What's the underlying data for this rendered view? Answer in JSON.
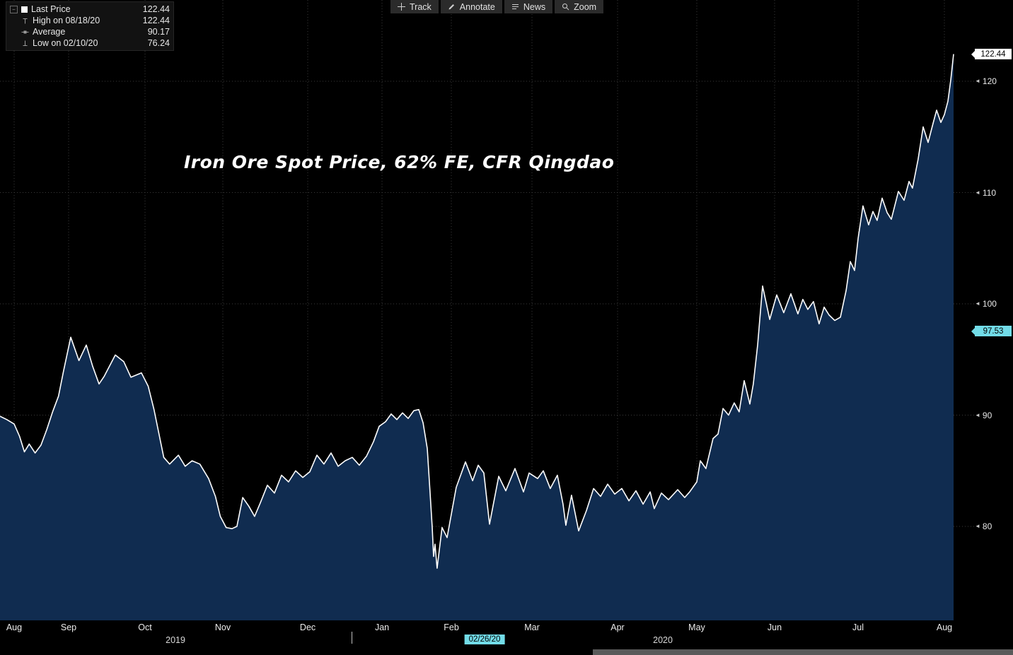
{
  "toolbar": {
    "buttons": [
      {
        "name": "track",
        "label": "Track"
      },
      {
        "name": "annotate",
        "label": "Annotate"
      },
      {
        "name": "news",
        "label": "News"
      },
      {
        "name": "zoom",
        "label": "Zoom"
      }
    ]
  },
  "legend": {
    "rows": [
      {
        "icon": "series-swatch",
        "label": "Last Price",
        "value": "122.44"
      },
      {
        "icon": "high-marker",
        "label": "High on 08/18/20",
        "value": "122.44"
      },
      {
        "icon": "average-marker",
        "label": "Average",
        "value": "90.17"
      },
      {
        "icon": "low-marker",
        "label": "Low on 02/10/20",
        "value": "76.24"
      }
    ]
  },
  "chart_data": {
    "type": "area",
    "title": "Iron Ore Spot Price, 62% FE, CFR Qingdao",
    "x_range": [
      "Aug 2019",
      "Aug 2020"
    ],
    "ylim_visible": [
      71.6,
      127.3
    ],
    "grid": "dotted",
    "stats": {
      "last_price": 122.44,
      "high": {
        "date": "08/18/20",
        "value": 122.44
      },
      "average": 90.17,
      "low": {
        "date": "02/10/20",
        "value": 76.24
      }
    },
    "y_axis": {
      "ticks": [
        80,
        90,
        100,
        110,
        120
      ],
      "badges": [
        {
          "label": "122.44",
          "price": 122.44,
          "bg": "#ffffff"
        },
        {
          "label": "97.53",
          "price": 97.53,
          "bg": "#72dce8"
        }
      ]
    },
    "x_axis": {
      "months": [
        {
          "label": "Aug",
          "f": 0.0145
        },
        {
          "label": "Sep",
          "f": 0.0704
        },
        {
          "label": "Oct",
          "f": 0.1488
        },
        {
          "label": "Nov",
          "f": 0.2286
        },
        {
          "label": "Dec",
          "f": 0.3157
        },
        {
          "label": "Jan",
          "f": 0.3919
        },
        {
          "label": "Feb",
          "f": 0.463
        },
        {
          "label": "Mar",
          "f": 0.5457
        },
        {
          "label": "Apr",
          "f": 0.6335
        },
        {
          "label": "May",
          "f": 0.7148
        },
        {
          "label": "Jun",
          "f": 0.7946
        },
        {
          "label": "Jul",
          "f": 0.8803
        },
        {
          "label": "Aug",
          "f": 0.9688
        }
      ],
      "years": [
        {
          "label": "2019",
          "f": 0.18
        },
        {
          "label": "2020",
          "f": 0.68
        }
      ],
      "year_divider_f": 0.3607,
      "cursor_badge": {
        "label": "02/26/20",
        "f": 0.4971
      }
    },
    "series": [
      {
        "name": "Last Price",
        "color": "#ffffff",
        "fill": "#102c50",
        "points": [
          [
            0.0,
            89.9
          ],
          [
            0.007,
            89.6
          ],
          [
            0.0145,
            89.2
          ],
          [
            0.02,
            88.1
          ],
          [
            0.025,
            86.7
          ],
          [
            0.03,
            87.4
          ],
          [
            0.036,
            86.6
          ],
          [
            0.042,
            87.3
          ],
          [
            0.048,
            88.7
          ],
          [
            0.054,
            90.3
          ],
          [
            0.06,
            91.7
          ],
          [
            0.065,
            93.9
          ],
          [
            0.0726,
            97.0
          ],
          [
            0.081,
            94.9
          ],
          [
            0.0885,
            96.3
          ],
          [
            0.095,
            94.4
          ],
          [
            0.1016,
            92.8
          ],
          [
            0.107,
            93.5
          ],
          [
            0.1183,
            95.4
          ],
          [
            0.127,
            94.8
          ],
          [
            0.1343,
            93.4
          ],
          [
            0.1451,
            93.8
          ],
          [
            0.152,
            92.6
          ],
          [
            0.158,
            90.5
          ],
          [
            0.168,
            86.2
          ],
          [
            0.174,
            85.6
          ],
          [
            0.183,
            86.4
          ],
          [
            0.19,
            85.4
          ],
          [
            0.197,
            85.9
          ],
          [
            0.205,
            85.6
          ],
          [
            0.214,
            84.3
          ],
          [
            0.221,
            82.7
          ],
          [
            0.226,
            80.9
          ],
          [
            0.232,
            79.9
          ],
          [
            0.238,
            79.8
          ],
          [
            0.243,
            80.0
          ],
          [
            0.249,
            82.6
          ],
          [
            0.2554,
            81.8
          ],
          [
            0.2612,
            80.9
          ],
          [
            0.267,
            82.1
          ],
          [
            0.2743,
            83.7
          ],
          [
            0.2816,
            83.0
          ],
          [
            0.2888,
            84.6
          ],
          [
            0.296,
            84.0
          ],
          [
            0.3033,
            85.0
          ],
          [
            0.3106,
            84.4
          ],
          [
            0.3178,
            84.9
          ],
          [
            0.3251,
            86.4
          ],
          [
            0.3323,
            85.6
          ],
          [
            0.3396,
            86.6
          ],
          [
            0.3469,
            85.4
          ],
          [
            0.3541,
            85.9
          ],
          [
            0.3614,
            86.2
          ],
          [
            0.3686,
            85.5
          ],
          [
            0.3759,
            86.3
          ],
          [
            0.3831,
            87.6
          ],
          [
            0.389,
            89.0
          ],
          [
            0.3955,
            89.4
          ],
          [
            0.4013,
            90.1
          ],
          [
            0.4071,
            89.6
          ],
          [
            0.4129,
            90.2
          ],
          [
            0.4187,
            89.7
          ],
          [
            0.4245,
            90.4
          ],
          [
            0.4296,
            90.5
          ],
          [
            0.434,
            89.3
          ],
          [
            0.4383,
            87.0
          ],
          [
            0.4412,
            83.0
          ],
          [
            0.4434,
            79.9
          ],
          [
            0.4448,
            77.3
          ],
          [
            0.4462,
            78.4
          ],
          [
            0.4484,
            76.24
          ],
          [
            0.4535,
            79.9
          ],
          [
            0.4586,
            79.0
          ],
          [
            0.468,
            83.5
          ],
          [
            0.4775,
            85.8
          ],
          [
            0.4848,
            84.1
          ],
          [
            0.4906,
            85.5
          ],
          [
            0.4964,
            84.8
          ],
          [
            0.5022,
            80.2
          ],
          [
            0.5116,
            84.5
          ],
          [
            0.5189,
            83.2
          ],
          [
            0.5283,
            85.2
          ],
          [
            0.537,
            83.1
          ],
          [
            0.5428,
            84.8
          ],
          [
            0.5515,
            84.3
          ],
          [
            0.5573,
            85.0
          ],
          [
            0.5645,
            83.4
          ],
          [
            0.5718,
            84.6
          ],
          [
            0.5776,
            82.0
          ],
          [
            0.5805,
            80.1
          ],
          [
            0.5863,
            82.8
          ],
          [
            0.5936,
            79.6
          ],
          [
            0.6015,
            81.4
          ],
          [
            0.6089,
            83.4
          ],
          [
            0.6161,
            82.7
          ],
          [
            0.6234,
            83.8
          ],
          [
            0.6306,
            82.9
          ],
          [
            0.6379,
            83.4
          ],
          [
            0.6452,
            82.3
          ],
          [
            0.6524,
            83.2
          ],
          [
            0.6597,
            82.0
          ],
          [
            0.667,
            83.1
          ],
          [
            0.6712,
            81.6
          ],
          [
            0.6785,
            83.0
          ],
          [
            0.6858,
            82.4
          ],
          [
            0.6952,
            83.3
          ],
          [
            0.7024,
            82.6
          ],
          [
            0.7075,
            83.1
          ],
          [
            0.7148,
            84.0
          ],
          [
            0.7184,
            85.9
          ],
          [
            0.7242,
            85.2
          ],
          [
            0.7315,
            87.9
          ],
          [
            0.7366,
            88.3
          ],
          [
            0.7417,
            90.6
          ],
          [
            0.7474,
            90.0
          ],
          [
            0.7532,
            91.1
          ],
          [
            0.7583,
            90.3
          ],
          [
            0.7634,
            93.1
          ],
          [
            0.7692,
            91.0
          ],
          [
            0.7728,
            92.8
          ],
          [
            0.7772,
            96.3
          ],
          [
            0.7823,
            101.6
          ],
          [
            0.7896,
            98.6
          ],
          [
            0.7968,
            100.8
          ],
          [
            0.804,
            99.2
          ],
          [
            0.8113,
            100.9
          ],
          [
            0.8185,
            99.1
          ],
          [
            0.8236,
            100.4
          ],
          [
            0.8287,
            99.5
          ],
          [
            0.8345,
            100.2
          ],
          [
            0.8403,
            98.2
          ],
          [
            0.8454,
            99.7
          ],
          [
            0.8505,
            99.0
          ],
          [
            0.8563,
            98.5
          ],
          [
            0.8621,
            98.8
          ],
          [
            0.868,
            101.2
          ],
          [
            0.8723,
            103.8
          ],
          [
            0.8766,
            103.0
          ],
          [
            0.8803,
            105.9
          ],
          [
            0.8853,
            108.8
          ],
          [
            0.8911,
            107.1
          ],
          [
            0.8955,
            108.3
          ],
          [
            0.8998,
            107.5
          ],
          [
            0.9049,
            109.5
          ],
          [
            0.91,
            108.2
          ],
          [
            0.9144,
            107.6
          ],
          [
            0.9216,
            110.1
          ],
          [
            0.9274,
            109.3
          ],
          [
            0.9325,
            111.0
          ],
          [
            0.9361,
            110.4
          ],
          [
            0.9419,
            113.0
          ],
          [
            0.947,
            115.9
          ],
          [
            0.9521,
            114.5
          ],
          [
            0.9565,
            116.0
          ],
          [
            0.9608,
            117.4
          ],
          [
            0.9652,
            116.3
          ],
          [
            0.9688,
            117.0
          ],
          [
            0.9724,
            118.2
          ],
          [
            0.9753,
            120.1
          ],
          [
            0.9782,
            122.44
          ]
        ]
      }
    ]
  },
  "colors": {
    "background": "#000000",
    "area_fill": "#102c50",
    "line": "#ffffff",
    "grid": "#3a3a3a",
    "cyan_badge": "#72dce8",
    "white_badge": "#ffffff",
    "toolbar_bg": "#2b2b2b",
    "text": "#e8e8e8"
  }
}
